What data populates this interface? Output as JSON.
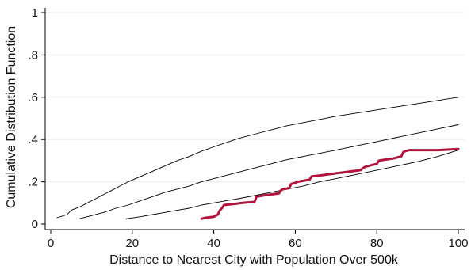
{
  "chart_data": {
    "type": "line",
    "xlabel": "Distance to Nearest City with Population Over 500k",
    "ylabel": "Cumulative Distribution Function",
    "xlim": [
      0,
      100
    ],
    "ylim": [
      0,
      1
    ],
    "xticks": [
      0,
      20,
      40,
      60,
      80,
      100
    ],
    "xtick_labels": [
      "0",
      "20",
      "40",
      "60",
      "80",
      "100"
    ],
    "yticks": [
      0,
      0.2,
      0.4,
      0.6,
      0.8,
      1
    ],
    "ytick_labels": [
      "0",
      ".2",
      ".4",
      ".6",
      ".8",
      "1"
    ],
    "grid": "horizontal",
    "legend": "none",
    "series": [
      {
        "color": "#000000",
        "style": "thin",
        "x": [
          1.5,
          4,
          5,
          7,
          9,
          11,
          13,
          15,
          17,
          19,
          22,
          25,
          28,
          31,
          34,
          37,
          40,
          43,
          46,
          50,
          54,
          58,
          62,
          66,
          70,
          75,
          80,
          85,
          90,
          95,
          100
        ],
        "y": [
          0.03,
          0.045,
          0.065,
          0.08,
          0.1,
          0.12,
          0.14,
          0.16,
          0.18,
          0.2,
          0.225,
          0.25,
          0.275,
          0.3,
          0.32,
          0.345,
          0.365,
          0.385,
          0.405,
          0.425,
          0.445,
          0.465,
          0.48,
          0.495,
          0.51,
          0.525,
          0.54,
          0.555,
          0.57,
          0.585,
          0.6
        ]
      },
      {
        "color": "#000000",
        "style": "thin",
        "x": [
          7,
          10,
          13,
          16,
          19,
          22,
          25,
          28,
          31,
          34,
          37,
          40,
          43,
          46,
          50,
          54,
          58,
          62,
          66,
          70,
          75,
          80,
          85,
          90,
          95,
          100
        ],
        "y": [
          0.025,
          0.04,
          0.055,
          0.075,
          0.09,
          0.11,
          0.13,
          0.15,
          0.165,
          0.18,
          0.2,
          0.215,
          0.23,
          0.245,
          0.265,
          0.285,
          0.305,
          0.32,
          0.335,
          0.35,
          0.37,
          0.39,
          0.41,
          0.43,
          0.45,
          0.47
        ]
      },
      {
        "color": "#000000",
        "style": "thin",
        "x": [
          18.5,
          22,
          25,
          28,
          31,
          34,
          37,
          40,
          43,
          46,
          50,
          54,
          58,
          62,
          66,
          70,
          75,
          80,
          85,
          90,
          95,
          100
        ],
        "y": [
          0.025,
          0.035,
          0.045,
          0.055,
          0.065,
          0.075,
          0.09,
          0.1,
          0.11,
          0.12,
          0.135,
          0.15,
          0.165,
          0.18,
          0.2,
          0.215,
          0.235,
          0.255,
          0.275,
          0.295,
          0.32,
          0.35
        ]
      },
      {
        "color": "#b0143c",
        "style": "thick",
        "x": [
          37,
          38,
          40,
          41,
          41.5,
          42,
          42.5,
          45,
          47,
          50,
          50.5,
          52,
          54,
          56,
          56.5,
          57,
          58.5,
          59,
          60,
          60.5,
          62,
          63.5,
          64,
          66,
          68,
          70,
          72,
          74,
          76,
          77,
          78,
          79,
          80,
          80.5,
          82,
          84,
          86,
          86.5,
          87,
          88,
          90,
          95,
          100
        ],
        "y": [
          0.025,
          0.03,
          0.035,
          0.045,
          0.065,
          0.075,
          0.09,
          0.095,
          0.1,
          0.105,
          0.13,
          0.135,
          0.14,
          0.145,
          0.16,
          0.165,
          0.17,
          0.19,
          0.195,
          0.2,
          0.205,
          0.21,
          0.225,
          0.23,
          0.235,
          0.24,
          0.245,
          0.25,
          0.255,
          0.27,
          0.275,
          0.28,
          0.285,
          0.3,
          0.305,
          0.31,
          0.32,
          0.34,
          0.345,
          0.35,
          0.35,
          0.35,
          0.355
        ]
      }
    ]
  }
}
